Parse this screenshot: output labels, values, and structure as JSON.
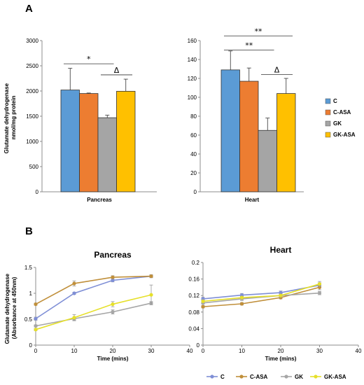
{
  "colors": {
    "C": "#5b9bd5",
    "C-ASA": "#ed7d31",
    "GK": "#a5a5a5",
    "GK-ASA": "#ffc000",
    "line_C": "#7f8fd6",
    "line_C-ASA": "#c08f3a",
    "line_GK": "#a6a6a6",
    "line_GK-ASA": "#e6e02a"
  },
  "panel_a_label": "A",
  "panel_b_label": "B",
  "shared_ylabel_a": [
    "Glutamate dehydrogenase",
    "nmol/mg protein"
  ],
  "shared_ylabel_b": [
    "Glutamate dehydrogenase",
    "(Absorbance at 450nm)"
  ],
  "legend_a": [
    "C",
    "C-ASA",
    "GK",
    "GK-ASA"
  ],
  "legend_b": [
    "C",
    "C-ASA",
    "GK",
    "GK-ASA"
  ],
  "chart_data": [
    {
      "id": "a-pancreas",
      "type": "bar",
      "xlabel": "Pancreas",
      "categories": [
        "C",
        "C-ASA",
        "GK",
        "GK-ASA"
      ],
      "values": [
        2020,
        1950,
        1470,
        1995
      ],
      "errors": [
        430,
        10,
        50,
        240
      ],
      "ylim": [
        0,
        3000
      ],
      "yticks": [
        0,
        500,
        1000,
        1500,
        2000,
        2500,
        3000
      ],
      "annotations": [
        {
          "text": "*",
          "from": 0,
          "to": 2,
          "y": 2540
        },
        {
          "text": "Δ",
          "from": 2,
          "to": 3,
          "y": 2320
        }
      ]
    },
    {
      "id": "a-heart",
      "type": "bar",
      "xlabel": "Heart",
      "categories": [
        "C",
        "C-ASA",
        "GK",
        "GK-ASA"
      ],
      "values": [
        129,
        117,
        65,
        104
      ],
      "errors": [
        20,
        14,
        13,
        16
      ],
      "ylim": [
        0,
        160
      ],
      "yticks": [
        0,
        20,
        40,
        60,
        80,
        100,
        120,
        140,
        160
      ],
      "annotations": [
        {
          "text": "**",
          "from": 0,
          "to": 2,
          "y": 150
        },
        {
          "text": "**",
          "from": 0,
          "to": 3,
          "y": 165
        },
        {
          "text": "Δ",
          "from": 2,
          "to": 3,
          "y": 124
        }
      ]
    },
    {
      "id": "b-pancreas",
      "type": "line",
      "title": "Pancreas",
      "xlabel": "Time (mins)",
      "x": [
        0,
        10,
        20,
        30
      ],
      "xlim": [
        0,
        40
      ],
      "xticks": [
        0,
        10,
        20,
        30,
        40
      ],
      "ylim": [
        0,
        1.5
      ],
      "yticks": [
        0,
        0.5,
        1,
        1.5
      ],
      "ytick_labels": [
        "0",
        "0.5",
        "1",
        "1.5"
      ],
      "series": [
        {
          "name": "C",
          "values": [
            0.51,
            1.0,
            1.25,
            1.33
          ],
          "errors": [
            0.03,
            0.02,
            0.03,
            0.03
          ]
        },
        {
          "name": "C-ASA",
          "values": [
            0.79,
            1.19,
            1.31,
            1.33
          ],
          "errors": [
            0.02,
            0.05,
            0.03,
            0.02
          ]
        },
        {
          "name": "GK",
          "values": [
            0.37,
            0.51,
            0.64,
            0.81
          ],
          "errors": [
            0.02,
            0.03,
            0.04,
            0.03
          ]
        },
        {
          "name": "GK-ASA",
          "values": [
            0.3,
            0.53,
            0.79,
            0.97
          ],
          "errors": [
            0.02,
            0.06,
            0.05,
            0.19
          ]
        }
      ]
    },
    {
      "id": "b-heart",
      "type": "line",
      "title": "Heart",
      "xlabel": "Time (mins)",
      "x": [
        0,
        10,
        20,
        30
      ],
      "xlim": [
        0,
        40
      ],
      "xticks": [
        0,
        10,
        20,
        30,
        40
      ],
      "ylim": [
        0,
        0.2
      ],
      "yticks": [
        0,
        0.04,
        0.08,
        0.12,
        0.16,
        0.2
      ],
      "ytick_labels": [
        "0",
        "0.04",
        "0.08",
        "0.12",
        "0.16",
        "0.2"
      ],
      "series": [
        {
          "name": "C",
          "values": [
            0.112,
            0.121,
            0.127,
            0.145
          ],
          "errors": [
            0.004,
            0.004,
            0.004,
            0.006
          ]
        },
        {
          "name": "C-ASA",
          "values": [
            0.093,
            0.1,
            0.115,
            0.14
          ],
          "errors": [
            0.003,
            0.003,
            0.003,
            0.006
          ]
        },
        {
          "name": "GK",
          "values": [
            0.102,
            0.112,
            0.12,
            0.126
          ],
          "errors": [
            0.003,
            0.004,
            0.004,
            0.004
          ]
        },
        {
          "name": "GK-ASA",
          "values": [
            0.106,
            0.115,
            0.12,
            0.148
          ],
          "errors": [
            0.003,
            0.003,
            0.004,
            0.006
          ]
        }
      ]
    }
  ]
}
